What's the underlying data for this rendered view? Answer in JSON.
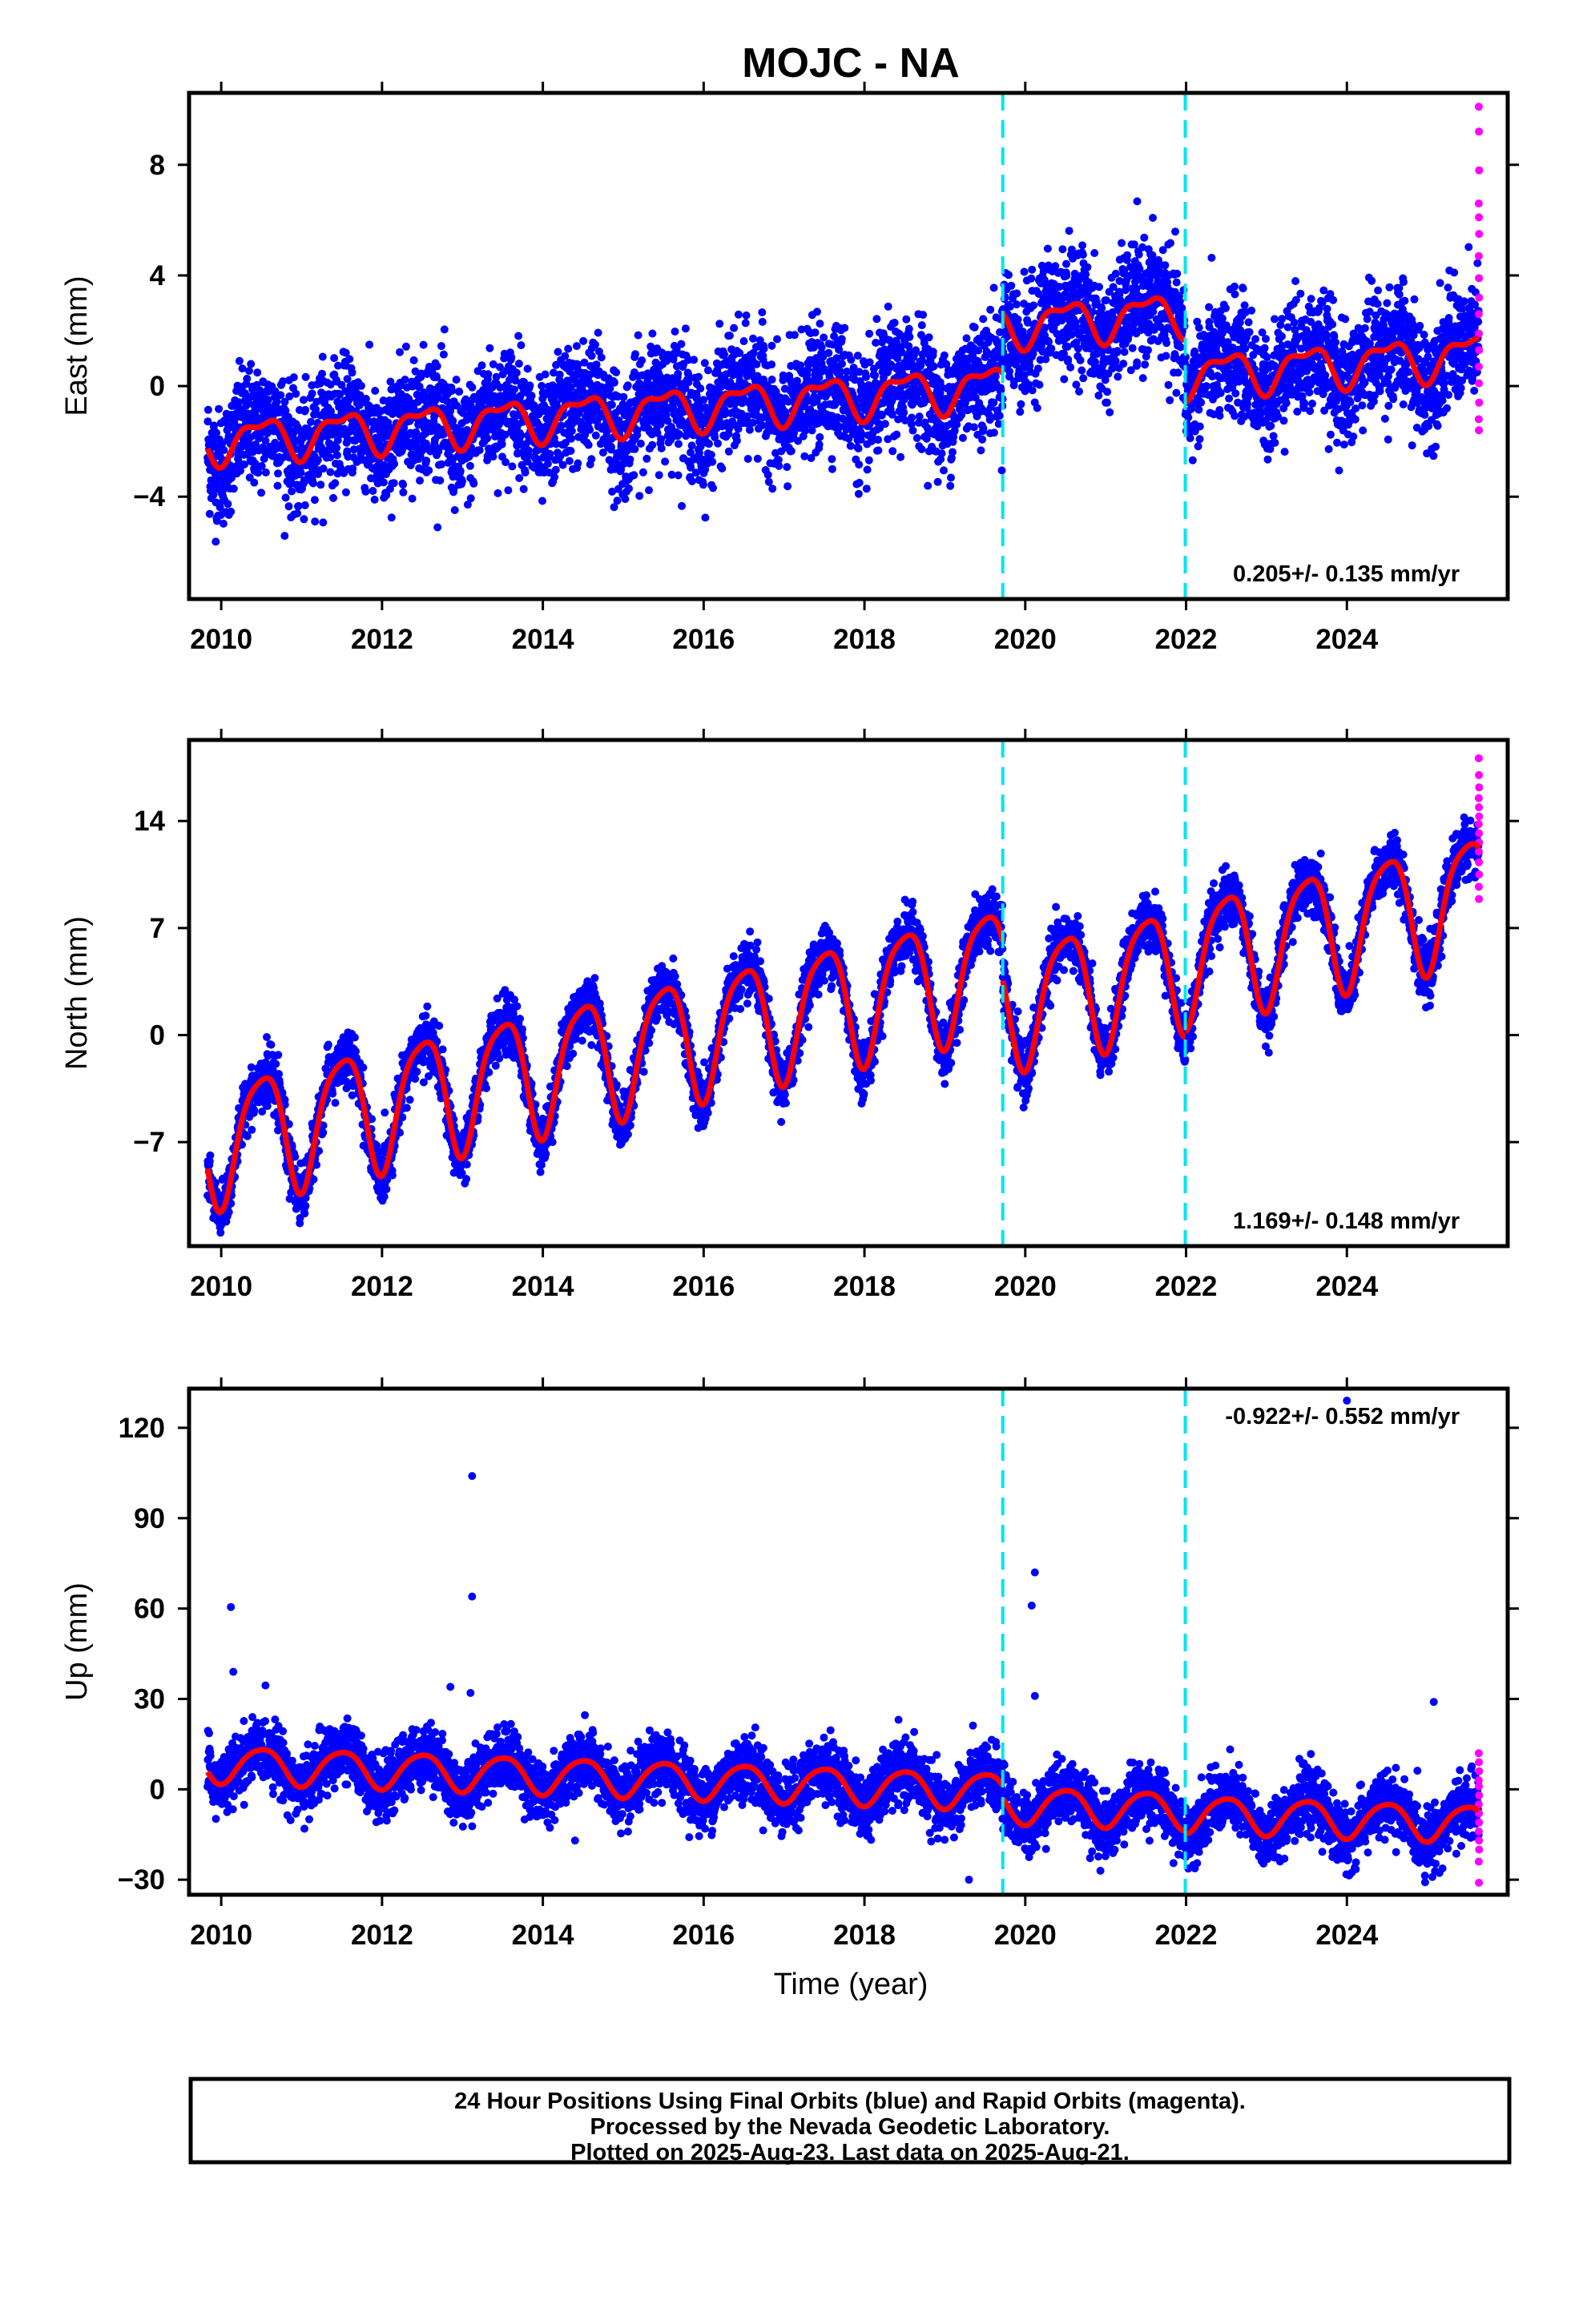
{
  "title": "MOJC - NA",
  "xlabel": "Time (year)",
  "footer": {
    "line1": "24 Hour Positions Using Final Orbits (blue) and Rapid Orbits (magenta).",
    "line2": "Processed by the Nevada Geodetic Laboratory.",
    "line3": "Plotted on 2025-Aug-23. Last data on 2025-Aug-21."
  },
  "colors": {
    "final": "#0000ff",
    "rapid": "#ff00ff",
    "model": "#ff0000",
    "steps": "#00e5ee"
  },
  "chart_data": [
    {
      "type": "scatter",
      "ylabel": "East (mm)",
      "rate": "0.205+/- 0.135 mm/yr",
      "xlim": [
        2009.6,
        2026.0
      ],
      "ylim": [
        -7.7,
        10.6
      ],
      "xticks": [
        2010,
        2012,
        2014,
        2016,
        2018,
        2020,
        2022,
        2024
      ],
      "yticks": [
        -4,
        0,
        4,
        8
      ],
      "steps": [
        2019.72,
        2021.99
      ],
      "data_span": [
        2009.83,
        2025.64
      ],
      "model": {
        "segments": [
          {
            "start": 2009.83,
            "end": 2019.72,
            "base_at_start": -2.0,
            "slope": 0.205,
            "annual_amp": 0.7,
            "semiannual_amp": 0.3
          },
          {
            "start": 2019.72,
            "end": 2021.99,
            "base_at_start": 2.2,
            "slope": 0.205,
            "annual_amp": 0.7,
            "semiannual_amp": 0.3
          },
          {
            "start": 2021.99,
            "end": 2025.64,
            "base_at_start": 0.4,
            "slope": 0.205,
            "annual_amp": 0.7,
            "semiannual_amp": 0.3
          }
        ]
      },
      "scatter_sd": 1.05,
      "rapid_values": [
        10.1,
        9.2,
        7.8,
        6.6,
        6.1,
        5.5,
        4.7,
        3.9,
        3.2,
        2.6,
        1.9,
        1.3,
        0.7,
        0.1,
        -0.6,
        -1.2,
        -1.6
      ]
    },
    {
      "type": "scatter",
      "ylabel": "North (mm)",
      "rate": "1.169+/- 0.148 mm/yr",
      "xlim": [
        2009.6,
        2026.0
      ],
      "ylim": [
        -13.8,
        19.3
      ],
      "xticks": [
        2010,
        2012,
        2014,
        2016,
        2018,
        2020,
        2022,
        2024
      ],
      "yticks": [
        -7,
        0,
        7,
        14
      ],
      "steps": [
        2019.72,
        2021.99
      ],
      "data_span": [
        2009.83,
        2025.64
      ],
      "model": {
        "segments": [
          {
            "start": 2009.83,
            "end": 2019.72,
            "base_at_start": -7.0,
            "slope": 1.169,
            "annual_amp": 4.0,
            "semiannual_amp": 0.8
          },
          {
            "start": 2019.72,
            "end": 2021.99,
            "base_at_start": 2.0,
            "slope": 1.169,
            "annual_amp": 4.0,
            "semiannual_amp": 0.8
          },
          {
            "start": 2021.99,
            "end": 2025.64,
            "base_at_start": 5.0,
            "slope": 1.169,
            "annual_amp": 4.0,
            "semiannual_amp": 0.8
          }
        ]
      },
      "scatter_sd": 0.9,
      "rapid_values": [
        18.1,
        17.0,
        16.2,
        15.5,
        14.9,
        14.3,
        13.8,
        13.2,
        12.6,
        12.0,
        11.3,
        10.5,
        9.7,
        8.9
      ]
    },
    {
      "type": "scatter",
      "ylabel": "Up (mm)",
      "rate": "-0.922+/- 0.552 mm/yr",
      "xlim": [
        2009.6,
        2026.0
      ],
      "ylim": [
        -35,
        133
      ],
      "xticks": [
        2010,
        2012,
        2014,
        2016,
        2018,
        2020,
        2022,
        2024
      ],
      "yticks": [
        -30,
        0,
        30,
        60,
        90,
        120
      ],
      "steps": [
        2019.72,
        2021.99
      ],
      "data_span": [
        2009.83,
        2025.64
      ],
      "model": {
        "segments": [
          {
            "start": 2009.83,
            "end": 2019.72,
            "base_at_start": 8.5,
            "slope": -0.922,
            "annual_amp": 6.0,
            "semiannual_amp": 0.8
          },
          {
            "start": 2019.72,
            "end": 2021.99,
            "base_at_start": -5.0,
            "slope": -0.922,
            "annual_amp": 6.0,
            "semiannual_amp": 0.8
          },
          {
            "start": 2021.99,
            "end": 2025.64,
            "base_at_start": -8.0,
            "slope": -0.922,
            "annual_amp": 6.0,
            "semiannual_amp": 0.8
          }
        ]
      },
      "scatter_sd": 5.0,
      "outliers": [
        [
          2010.12,
          60.5
        ],
        [
          2010.15,
          39
        ],
        [
          2013.12,
          104
        ],
        [
          2013.12,
          64
        ],
        [
          2013.1,
          32
        ],
        [
          2012.85,
          34
        ],
        [
          2020.12,
          72
        ],
        [
          2020.08,
          61
        ],
        [
          2020.12,
          31
        ],
        [
          2019.3,
          -30
        ],
        [
          2014.4,
          -17
        ],
        [
          2025.08,
          29
        ],
        [
          2024.0,
          129
        ]
      ],
      "rapid_values": [
        12,
        9,
        6,
        3,
        1,
        -2,
        -5,
        -8,
        -11,
        -14,
        -17,
        -20,
        -24,
        -31
      ]
    }
  ]
}
